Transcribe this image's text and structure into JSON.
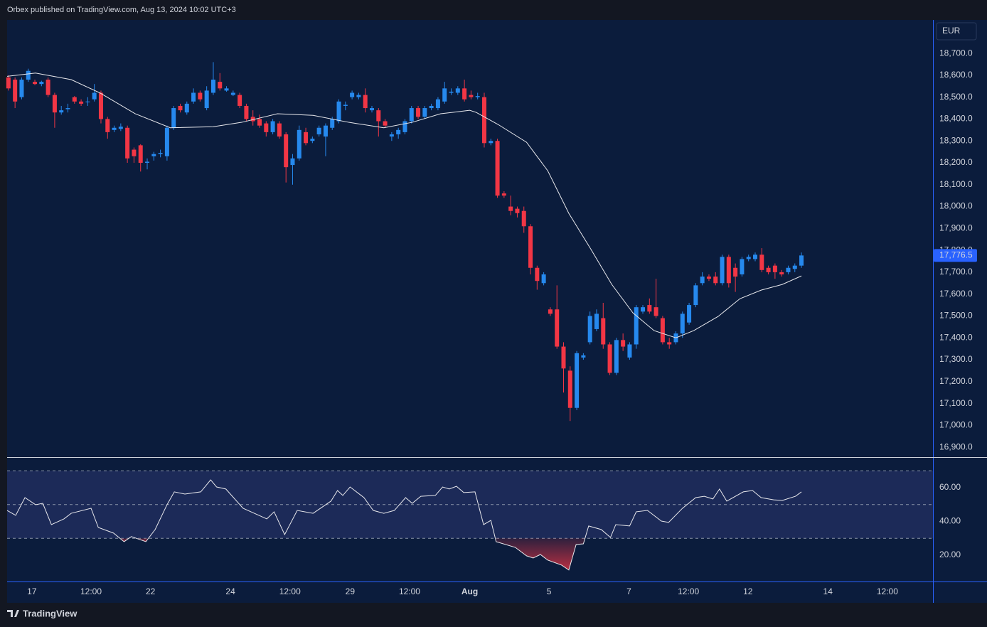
{
  "header": "Orbex published on TradingView.com, Aug 13, 2024 10:02 UTC+3",
  "footer": "TradingView",
  "chart_data": {
    "type": "candlestick",
    "currency": "EUR",
    "up_color": "#2689ee",
    "down_color": "#f23645",
    "xlim": [
      -0.2,
      139.9
    ],
    "xticks": [
      {
        "value": 3.55,
        "label": "17"
      },
      {
        "value": 12.5,
        "label": "12:00"
      },
      {
        "value": 21.5,
        "label": "22"
      },
      {
        "value": 33.6,
        "label": "24"
      },
      {
        "value": 42.6,
        "label": "12:00"
      },
      {
        "value": 51.7,
        "label": "29"
      },
      {
        "value": 60.7,
        "label": "12:00"
      },
      {
        "value": 69.8,
        "label": "Aug"
      },
      {
        "value": 81.8,
        "label": "5"
      },
      {
        "value": 93.9,
        "label": "7"
      },
      {
        "value": 102.9,
        "label": "12:00"
      },
      {
        "value": 111.9,
        "label": "12"
      },
      {
        "value": 124,
        "label": "14"
      },
      {
        "value": 133,
        "label": "12:00"
      }
    ],
    "ylim": [
      16855,
      18853
    ],
    "yticks": [
      {
        "value": 18700,
        "label": "18,700.0"
      },
      {
        "value": 18600,
        "label": "18,600.0"
      },
      {
        "value": 18500,
        "label": "18,500.0"
      },
      {
        "value": 18400,
        "label": "18,400.0"
      },
      {
        "value": 18300,
        "label": "18,300.0"
      },
      {
        "value": 18200,
        "label": "18,200.0"
      },
      {
        "value": 18100,
        "label": "18,100.0"
      },
      {
        "value": 18000,
        "label": "18,000.0"
      },
      {
        "value": 17900,
        "label": "17,900.0"
      },
      {
        "value": 17800,
        "label": "17,800.0"
      },
      {
        "value": 17700,
        "label": "17,700.0"
      },
      {
        "value": 17600,
        "label": "17,600.0"
      },
      {
        "value": 17500,
        "label": "17,500.0"
      },
      {
        "value": 17400,
        "label": "17,400.0"
      },
      {
        "value": 17300,
        "label": "17,300.0"
      },
      {
        "value": 17200,
        "label": "17,200.0"
      },
      {
        "value": 17100,
        "label": "17,100.0"
      },
      {
        "value": 17000,
        "label": "17,000.0"
      },
      {
        "value": 16900,
        "label": "16,900.0"
      }
    ],
    "last_price": {
      "value": 17776.5,
      "label": "17,776.5"
    },
    "open": [
      18590,
      18580,
      18500,
      18580,
      18570,
      18560,
      18580,
      18510,
      18430,
      18445,
      18500,
      18480,
      18478,
      18490,
      18520,
      18400,
      18350,
      18355,
      18360,
      18260,
      18280,
      18200,
      18230,
      18240,
      18230,
      18360,
      18460,
      18430,
      18480,
      18520,
      18450,
      18520,
      18570,
      18530,
      18510,
      18510,
      18460,
      18410,
      18400,
      18380,
      18340,
      18380,
      18330,
      18190,
      18220,
      18340,
      18300,
      18330,
      18320,
      18360,
      18390,
      18460,
      18500,
      18500,
      18510,
      18440,
      18440,
      18390,
      18320,
      18330,
      18340,
      18390,
      18450,
      18410,
      18450,
      18450,
      18480,
      18520,
      18520,
      18540,
      18510,
      18500,
      18500,
      18290,
      18300,
      18060,
      18000,
      17990,
      17980,
      17910,
      17720,
      17650,
      17530,
      17530,
      17360,
      17250,
      17080,
      17310,
      17380,
      17440,
      17490,
      17370,
      17240,
      17390,
      17310,
      17370,
      17520,
      17550,
      17540,
      17490,
      17380,
      17380,
      17420,
      17470,
      17550,
      17650,
      17680,
      17680,
      17650,
      17770,
      17720,
      17690,
      17760,
      17760,
      17780,
      17720,
      17730,
      17700,
      17700,
      17715,
      17730
    ],
    "high": [
      18600,
      18590,
      18590,
      18630,
      18580,
      18575,
      18590,
      18520,
      18460,
      18470,
      18505,
      18490,
      18500,
      18560,
      18530,
      18410,
      18370,
      18380,
      18370,
      18270,
      18285,
      18220,
      18250,
      18260,
      18370,
      18460,
      18470,
      18480,
      18540,
      18530,
      18550,
      18660,
      18610,
      18550,
      18530,
      18520,
      18470,
      18440,
      18420,
      18390,
      18400,
      18390,
      18340,
      18240,
      18370,
      18360,
      18320,
      18370,
      18380,
      18410,
      18490,
      18480,
      18530,
      18520,
      18540,
      18460,
      18450,
      18400,
      18340,
      18360,
      18400,
      18460,
      18460,
      18460,
      18470,
      18500,
      18570,
      18540,
      18550,
      18580,
      18530,
      18520,
      18520,
      18310,
      18310,
      18070,
      18050,
      18000,
      18000,
      17920,
      17730,
      17700,
      17540,
      17640,
      17380,
      17270,
      17340,
      17330,
      17520,
      17530,
      17560,
      17380,
      17400,
      17420,
      17380,
      17550,
      17550,
      17580,
      17670,
      17500,
      17400,
      17430,
      17520,
      17560,
      17650,
      17700,
      17690,
      17700,
      17780,
      17780,
      17740,
      17770,
      17780,
      17790,
      17810,
      17730,
      17740,
      17710,
      17730,
      17740,
      17790
    ],
    "low": [
      18530,
      18450,
      18490,
      18570,
      18555,
      18550,
      18500,
      18360,
      18420,
      18430,
      18470,
      18460,
      18460,
      18480,
      18380,
      18310,
      18340,
      18345,
      18200,
      18200,
      18160,
      18170,
      18210,
      18225,
      18210,
      18350,
      18430,
      18420,
      18470,
      18480,
      18440,
      18510,
      18530,
      18525,
      18505,
      18450,
      18390,
      18370,
      18360,
      18320,
      18330,
      18310,
      18110,
      18100,
      18210,
      18280,
      18290,
      18320,
      18230,
      18350,
      18380,
      18440,
      18490,
      18490,
      18430,
      18430,
      18320,
      18360,
      18300,
      18310,
      18330,
      18380,
      18400,
      18400,
      18440,
      18440,
      18470,
      18510,
      18510,
      18480,
      18490,
      18490,
      18270,
      18280,
      18040,
      18040,
      17960,
      17950,
      17880,
      17690,
      17620,
      17640,
      17500,
      17350,
      17150,
      17020,
      17070,
      17300,
      17370,
      17430,
      17350,
      17230,
      17230,
      17340,
      17300,
      17350,
      17510,
      17510,
      17490,
      17370,
      17350,
      17370,
      17400,
      17460,
      17540,
      17640,
      17660,
      17640,
      17640,
      17630,
      17610,
      17680,
      17750,
      17750,
      17700,
      17690,
      17670,
      17680,
      17690,
      17700,
      17720
    ],
    "close": [
      18540,
      18480,
      18580,
      18620,
      18560,
      18570,
      18510,
      18430,
      18440,
      18450,
      18480,
      18470,
      18480,
      18520,
      18400,
      18340,
      18360,
      18365,
      18220,
      18230,
      18200,
      18205,
      18240,
      18245,
      18360,
      18450,
      18440,
      18470,
      18520,
      18490,
      18530,
      18580,
      18540,
      18540,
      18520,
      18460,
      18400,
      18390,
      18370,
      18340,
      18390,
      18320,
      18180,
      18220,
      18350,
      18290,
      18310,
      18360,
      18370,
      18400,
      18480,
      18465,
      18520,
      18510,
      18450,
      18450,
      18390,
      18370,
      18330,
      18350,
      18390,
      18450,
      18410,
      18450,
      18460,
      18490,
      18540,
      18525,
      18540,
      18490,
      18500,
      18505,
      18290,
      18300,
      18050,
      18050,
      17980,
      17970,
      17910,
      17720,
      17660,
      17690,
      17510,
      17360,
      17260,
      17080,
      17330,
      17320,
      17500,
      17510,
      17370,
      17240,
      17390,
      17360,
      17370,
      17540,
      17540,
      17520,
      17500,
      17380,
      17370,
      17420,
      17510,
      17550,
      17640,
      17680,
      17670,
      17650,
      17770,
      17650,
      17680,
      17760,
      17770,
      17780,
      17710,
      17700,
      17700,
      17690,
      17720,
      17730,
      17776.5
    ],
    "ma": {
      "color": "#e8e8ec",
      "x": [
        -0.2,
        4.1,
        9.5,
        13.8,
        19.2,
        24.5,
        31.0,
        35.3,
        40.7,
        46.1,
        51.5,
        56.8,
        61.1,
        65.4,
        69.8,
        70.8,
        74.1,
        78.4,
        81.6,
        84.8,
        88.1,
        91.3,
        94.5,
        97.7,
        101.0,
        103.7,
        107.4,
        110.7,
        113.9,
        117.1,
        120.0
      ],
      "values": [
        18595,
        18610,
        18580,
        18520,
        18424,
        18360,
        18365,
        18385,
        18424,
        18417,
        18385,
        18360,
        18385,
        18424,
        18440,
        18430,
        18375,
        18294,
        18164,
        17969,
        17807,
        17644,
        17514,
        17433,
        17400,
        17433,
        17498,
        17579,
        17618,
        17644,
        17683
      ]
    },
    "rsi": {
      "color": "#e8e8ec",
      "fill_color": "#1c2a58",
      "oversold_color": "#f23645",
      "ylim": [
        4.4,
        78.1
      ],
      "yticks": [
        {
          "value": 60,
          "label": "60.00"
        },
        {
          "value": 40,
          "label": "40.00"
        },
        {
          "value": 20,
          "label": "20.00"
        }
      ],
      "levels": [
        70,
        50,
        30
      ],
      "x": [
        -0.2,
        1.1,
        2.5,
        4.1,
        5.2,
        6.5,
        8.4,
        9.5,
        12.5,
        13.6,
        15.9,
        17.5,
        18.6,
        20.8,
        22.2,
        24.0,
        25.1,
        26.7,
        29.1,
        30.6,
        31.5,
        32.9,
        35.5,
        39.1,
        40.2,
        41.8,
        43.7,
        46.1,
        48.8,
        49.8,
        50.6,
        51.7,
        53.8,
        55.2,
        56.8,
        58.4,
        60.1,
        61.1,
        62.4,
        64.6,
        65.7,
        66.7,
        67.8,
        68.9,
        70.6,
        71.9,
        73.0,
        73.8,
        76.7,
        78.4,
        79.4,
        80.5,
        81.6,
        83.7,
        84.8,
        85.9,
        87.0,
        87.8,
        89.7,
        91.1,
        91.9,
        94.0,
        95.0,
        96.7,
        98.8,
        99.9,
        102.0,
        104.0,
        105.3,
        106.6,
        107.6,
        108.7,
        111.2,
        112.6,
        113.9,
        115.8,
        117.1,
        119.1,
        120.0
      ],
      "values": [
        46.5,
        43.6,
        54.1,
        49.9,
        50.7,
        38.1,
        41.5,
        44.8,
        47.8,
        36.4,
        33.1,
        28.0,
        31.0,
        28.0,
        35.2,
        49.9,
        57.5,
        56.2,
        57.5,
        64.6,
        60.4,
        59.2,
        47.8,
        41.5,
        45.7,
        32.2,
        46.5,
        44.8,
        52.0,
        58.3,
        55.4,
        60.4,
        54.1,
        46.5,
        44.8,
        46.5,
        54.1,
        50.7,
        54.9,
        55.4,
        60.4,
        59.2,
        60.8,
        57.1,
        57.5,
        38.1,
        40.6,
        28.0,
        24.6,
        19.6,
        18.3,
        20.4,
        17.1,
        14.1,
        11.2,
        26.3,
        26.7,
        37.3,
        35.2,
        30.5,
        38.1,
        37.3,
        45.7,
        46.5,
        40.2,
        39.4,
        47.8,
        54.1,
        54.9,
        53.3,
        59.2,
        52.0,
        57.5,
        58.3,
        54.1,
        52.8,
        52.4,
        54.9,
        57.5
      ]
    }
  }
}
